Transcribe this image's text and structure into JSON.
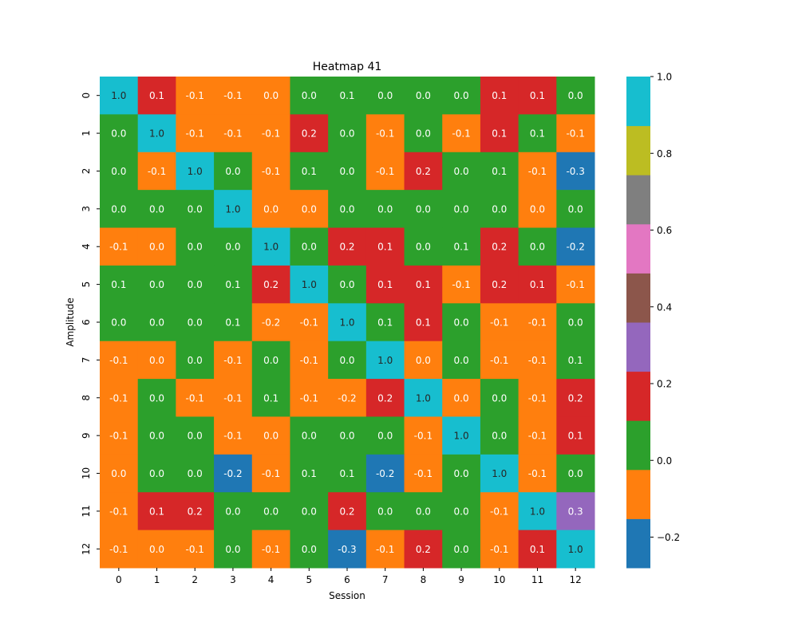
{
  "chart_data": {
    "type": "heatmap",
    "title": "Heatmap 41",
    "xlabel": "Session",
    "ylabel": "Amplitude",
    "x_categories": [
      "0",
      "1",
      "2",
      "3",
      "4",
      "5",
      "6",
      "7",
      "8",
      "9",
      "10",
      "11",
      "12"
    ],
    "y_categories": [
      "0",
      "1",
      "2",
      "3",
      "4",
      "5",
      "6",
      "7",
      "8",
      "9",
      "10",
      "11",
      "12"
    ],
    "values": [
      [
        1.0,
        0.1,
        -0.1,
        -0.1,
        -0.0,
        0.0,
        0.1,
        0.0,
        -0.0,
        0.0,
        0.1,
        0.1,
        0.0
      ],
      [
        0.0,
        1.0,
        -0.1,
        -0.1,
        -0.1,
        0.2,
        -0.0,
        -0.1,
        0.0,
        -0.1,
        0.1,
        0.1,
        -0.1
      ],
      [
        -0.0,
        -0.1,
        1.0,
        0.0,
        -0.1,
        0.1,
        0.0,
        -0.1,
        0.2,
        -0.0,
        0.1,
        -0.1,
        -0.3
      ],
      [
        0.0,
        -0.0,
        0.0,
        1.0,
        -0.0,
        -0.0,
        0.0,
        0.0,
        0.0,
        0.0,
        0.0,
        -0.0,
        -0.0
      ],
      [
        -0.1,
        -0.0,
        -0.0,
        -0.0,
        1.0,
        0.0,
        0.2,
        0.1,
        0.0,
        0.1,
        0.2,
        -0.0,
        -0.2
      ],
      [
        0.1,
        -0.0,
        -0.0,
        0.1,
        0.2,
        1.0,
        -0.0,
        0.1,
        0.1,
        -0.1,
        0.2,
        0.1,
        -0.1
      ],
      [
        0.0,
        -0.0,
        -0.0,
        0.1,
        -0.2,
        -0.1,
        1.0,
        0.1,
        0.1,
        -0.0,
        -0.1,
        -0.1,
        0.0
      ],
      [
        -0.1,
        -0.0,
        -0.0,
        -0.1,
        0.0,
        -0.1,
        -0.0,
        1.0,
        -0.0,
        -0.0,
        -0.1,
        -0.1,
        0.1
      ],
      [
        -0.1,
        0.0,
        -0.1,
        -0.1,
        0.1,
        -0.1,
        -0.2,
        0.2,
        1.0,
        -0.0,
        0.0,
        -0.1,
        0.2
      ],
      [
        -0.1,
        0.0,
        -0.0,
        -0.1,
        -0.0,
        0.0,
        -0.0,
        -0.0,
        -0.1,
        1.0,
        0.0,
        -0.1,
        0.1
      ],
      [
        -0.0,
        0.0,
        0.0,
        -0.2,
        -0.1,
        0.1,
        0.1,
        -0.2,
        -0.1,
        -0.0,
        1.0,
        -0.1,
        -0.0
      ],
      [
        -0.1,
        0.1,
        0.2,
        0.0,
        0.0,
        0.0,
        0.2,
        -0.0,
        0.0,
        -0.0,
        -0.1,
        1.0,
        0.3
      ],
      [
        -0.1,
        -0.0,
        -0.1,
        -0.0,
        -0.1,
        0.0,
        -0.3,
        -0.1,
        0.2,
        -0.0,
        -0.1,
        0.1,
        1.0
      ]
    ],
    "cell_colors": [
      [
        "#17becf",
        "#d62728",
        "#ff7f0e",
        "#ff7f0e",
        "#ff7f0e",
        "#2ca02c",
        "#2ca02c",
        "#2ca02c",
        "#2ca02c",
        "#2ca02c",
        "#d62728",
        "#d62728",
        "#2ca02c"
      ],
      [
        "#2ca02c",
        "#17becf",
        "#ff7f0e",
        "#ff7f0e",
        "#ff7f0e",
        "#d62728",
        "#2ca02c",
        "#ff7f0e",
        "#2ca02c",
        "#ff7f0e",
        "#d62728",
        "#2ca02c",
        "#ff7f0e"
      ],
      [
        "#2ca02c",
        "#ff7f0e",
        "#17becf",
        "#2ca02c",
        "#ff7f0e",
        "#2ca02c",
        "#2ca02c",
        "#ff7f0e",
        "#d62728",
        "#2ca02c",
        "#2ca02c",
        "#ff7f0e",
        "#1f77b4"
      ],
      [
        "#2ca02c",
        "#2ca02c",
        "#2ca02c",
        "#17becf",
        "#ff7f0e",
        "#ff7f0e",
        "#2ca02c",
        "#2ca02c",
        "#2ca02c",
        "#2ca02c",
        "#2ca02c",
        "#ff7f0e",
        "#2ca02c"
      ],
      [
        "#ff7f0e",
        "#ff7f0e",
        "#2ca02c",
        "#2ca02c",
        "#17becf",
        "#2ca02c",
        "#d62728",
        "#d62728",
        "#2ca02c",
        "#2ca02c",
        "#d62728",
        "#2ca02c",
        "#1f77b4"
      ],
      [
        "#2ca02c",
        "#2ca02c",
        "#2ca02c",
        "#2ca02c",
        "#d62728",
        "#17becf",
        "#2ca02c",
        "#d62728",
        "#d62728",
        "#ff7f0e",
        "#d62728",
        "#d62728",
        "#ff7f0e"
      ],
      [
        "#2ca02c",
        "#2ca02c",
        "#2ca02c",
        "#2ca02c",
        "#ff7f0e",
        "#ff7f0e",
        "#17becf",
        "#2ca02c",
        "#d62728",
        "#2ca02c",
        "#ff7f0e",
        "#ff7f0e",
        "#2ca02c"
      ],
      [
        "#ff7f0e",
        "#ff7f0e",
        "#2ca02c",
        "#ff7f0e",
        "#2ca02c",
        "#ff7f0e",
        "#2ca02c",
        "#17becf",
        "#ff7f0e",
        "#2ca02c",
        "#ff7f0e",
        "#ff7f0e",
        "#2ca02c"
      ],
      [
        "#ff7f0e",
        "#2ca02c",
        "#ff7f0e",
        "#ff7f0e",
        "#2ca02c",
        "#ff7f0e",
        "#ff7f0e",
        "#d62728",
        "#17becf",
        "#ff7f0e",
        "#2ca02c",
        "#ff7f0e",
        "#d62728"
      ],
      [
        "#ff7f0e",
        "#2ca02c",
        "#2ca02c",
        "#ff7f0e",
        "#ff7f0e",
        "#2ca02c",
        "#2ca02c",
        "#2ca02c",
        "#ff7f0e",
        "#17becf",
        "#2ca02c",
        "#ff7f0e",
        "#d62728"
      ],
      [
        "#ff7f0e",
        "#2ca02c",
        "#2ca02c",
        "#1f77b4",
        "#ff7f0e",
        "#2ca02c",
        "#2ca02c",
        "#1f77b4",
        "#ff7f0e",
        "#2ca02c",
        "#17becf",
        "#ff7f0e",
        "#2ca02c"
      ],
      [
        "#ff7f0e",
        "#d62728",
        "#d62728",
        "#2ca02c",
        "#2ca02c",
        "#2ca02c",
        "#d62728",
        "#2ca02c",
        "#2ca02c",
        "#2ca02c",
        "#ff7f0e",
        "#17becf",
        "#9467bd"
      ],
      [
        "#ff7f0e",
        "#ff7f0e",
        "#ff7f0e",
        "#2ca02c",
        "#ff7f0e",
        "#2ca02c",
        "#1f77b4",
        "#ff7f0e",
        "#d62728",
        "#2ca02c",
        "#ff7f0e",
        "#d62728",
        "#17becf"
      ]
    ],
    "colorbar": {
      "range": [
        -0.28,
        1.0
      ],
      "segments": [
        "#1f77b4",
        "#ff7f0e",
        "#2ca02c",
        "#d62728",
        "#9467bd",
        "#8c564b",
        "#e377c2",
        "#7f7f7f",
        "#bcbd22",
        "#17becf"
      ],
      "ticks": [
        -0.2,
        0.0,
        0.2,
        0.4,
        0.6,
        0.8,
        1.0
      ],
      "tick_labels": [
        "−0.2",
        "0.0",
        "0.2",
        "0.4",
        "0.6",
        "0.8",
        "1.0"
      ]
    },
    "annotation_dark_on": "#17becf",
    "grid": false
  }
}
